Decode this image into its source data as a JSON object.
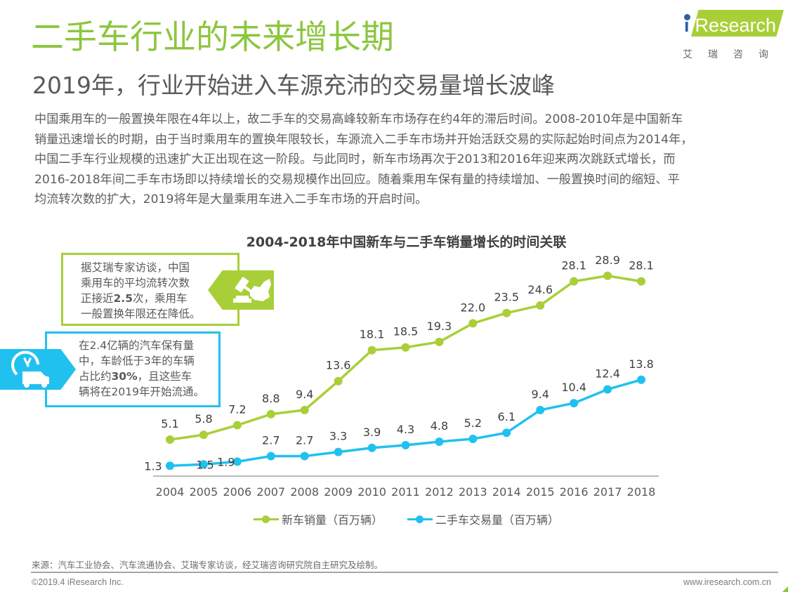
{
  "header": {
    "title": "二手车行业的未来增长期",
    "subtitle": "2019年，行业开始进入车源充沛的交易量增长波峰"
  },
  "logo": {
    "brand": "Research",
    "brand_prefix": "i",
    "cn": "艾瑞咨询"
  },
  "paragraph": [
    "中国乘用车的一般置换年限在4年以上，故二手车的交易高峰较新车市场存在约4年的滞后时间。2008-2010年是中国新车",
    "销量迅速增长的时期，由于当时乘用车的置换年限较长，车源流入二手车市场并开始活跃交易的实际起始时间点为2014年，",
    "中国二手车行业规模的迅速扩大正出现在这一阶段。与此同时，新车市场再次于2013和2016年迎来两次跳跃式增长，而",
    "2016-2018年间二手车市场即以持续增长的交易规模作出回应。随着乘用车保有量的持续增加、一般置换时间的缩短、平",
    "均流转次数的扩大，2019将年是大量乘用车进入二手车市场的开启时间。"
  ],
  "callouts": [
    {
      "icon": "gavel-map-icon",
      "lines": [
        {
          "parts": [
            {
              "text": "据艾瑞专家访谈，中国",
              "bold": false
            }
          ]
        },
        {
          "parts": [
            {
              "text": "乘用车的平均流转次数",
              "bold": false
            }
          ]
        },
        {
          "parts": [
            {
              "text": "正接近",
              "bold": false
            },
            {
              "text": "2.5",
              "bold": true
            },
            {
              "text": "次，乘用车",
              "bold": false
            }
          ]
        },
        {
          "parts": [
            {
              "text": "一般置换年限还在降低。",
              "bold": false
            }
          ]
        }
      ],
      "color": "#a9cf38"
    },
    {
      "icon": "clock-van-icon",
      "lines": [
        {
          "parts": [
            {
              "text": "在2.4亿辆的汽车保有量",
              "bold": false
            }
          ]
        },
        {
          "parts": [
            {
              "text": "中，车龄低于3年的车辆",
              "bold": false
            }
          ]
        },
        {
          "parts": [
            {
              "text": "占比约",
              "bold": false
            },
            {
              "text": "30%",
              "bold": true
            },
            {
              "text": "，且这些车",
              "bold": false
            }
          ]
        },
        {
          "parts": [
            {
              "text": "辆将在2019年开始流通。",
              "bold": false
            }
          ]
        }
      ],
      "color": "#21c1ef"
    }
  ],
  "chart_data": {
    "type": "line",
    "title": "2004-2018年中国新车与二手车销量增长的时间关联",
    "xlabel": "",
    "ylabel": "",
    "x": [
      "2004",
      "2005",
      "2006",
      "2007",
      "2008",
      "2009",
      "2010",
      "2011",
      "2012",
      "2013",
      "2014",
      "2015",
      "2016",
      "2017",
      "2018"
    ],
    "ylim": [
      0,
      30
    ],
    "grid": false,
    "legend_position": "bottom",
    "series": [
      {
        "name": "新车销量（百万辆）",
        "color": "#a9cf38",
        "values": [
          5.1,
          5.8,
          7.2,
          8.8,
          9.4,
          13.6,
          18.1,
          18.5,
          19.3,
          22.0,
          23.5,
          24.6,
          28.1,
          28.9,
          28.1
        ],
        "labels": [
          "5.1",
          "5.8",
          "7.2",
          "8.8",
          "9.4",
          "13.6",
          "18.1",
          "18.5",
          "19.3",
          "22.0",
          "23.5",
          "24.6",
          "28.1",
          "28.9",
          "28.1"
        ]
      },
      {
        "name": "二手车交易量（百万辆）",
        "color": "#21c1ef",
        "values": [
          1.3,
          1.5,
          1.9,
          2.7,
          2.7,
          3.3,
          3.9,
          4.3,
          4.8,
          5.2,
          6.1,
          9.4,
          10.4,
          12.4,
          13.8
        ],
        "labels": [
          "1.3",
          "1.5",
          "1.9",
          "2.7",
          "2.7",
          "3.3",
          "3.9",
          "4.3",
          "4.8",
          "5.2",
          "6.1",
          "9.4",
          "10.4",
          "12.4",
          "13.8"
        ]
      }
    ]
  },
  "footer": {
    "source": "来源：汽车工业协会、汽车流通协会、艾瑞专家访谈，经艾瑞咨询研究院自主研究及绘制。",
    "copyright": "©2019.4 iResearch Inc.",
    "website": "www.iresearch.com.cn"
  }
}
